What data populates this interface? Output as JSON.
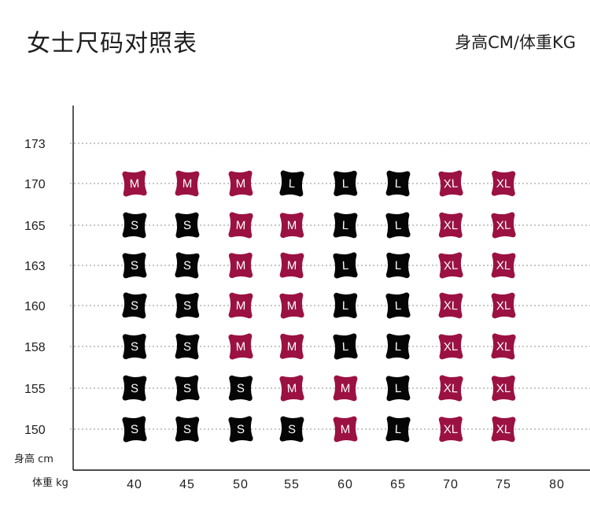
{
  "header": {
    "title": "女士尺码对照表",
    "subtitle": "身高CM/体重KG"
  },
  "colors": {
    "black": "#050505",
    "crimson": "#9b1242",
    "grid": "#8c8c8c",
    "axis": "#111111",
    "text": "#1e1e1e"
  },
  "chart_data": {
    "type": "table",
    "title": "女士尺码对照表",
    "unit_label": "身高CM/体重KG",
    "y_axis_label": "身高 cm",
    "x_axis_label": "体重 kg",
    "y_ticks": [
      "173",
      "170",
      "165",
      "163",
      "160",
      "158",
      "155",
      "150"
    ],
    "x_ticks": [
      "40",
      "45",
      "50",
      "55",
      "60",
      "65",
      "70",
      "75",
      "80"
    ],
    "rows": [
      {
        "height": "170",
        "sizes": [
          "M",
          "M",
          "M",
          "L",
          "L",
          "L",
          "XL",
          "XL"
        ]
      },
      {
        "height": "165",
        "sizes": [
          "S",
          "S",
          "M",
          "M",
          "L",
          "L",
          "XL",
          "XL"
        ]
      },
      {
        "height": "163",
        "sizes": [
          "S",
          "S",
          "M",
          "M",
          "L",
          "L",
          "XL",
          "XL"
        ]
      },
      {
        "height": "160",
        "sizes": [
          "S",
          "S",
          "M",
          "M",
          "L",
          "L",
          "XL",
          "XL"
        ]
      },
      {
        "height": "158",
        "sizes": [
          "S",
          "S",
          "M",
          "M",
          "L",
          "L",
          "XL",
          "XL"
        ]
      },
      {
        "height": "155",
        "sizes": [
          "S",
          "S",
          "S",
          "M",
          "M",
          "L",
          "XL",
          "XL"
        ]
      },
      {
        "height": "150",
        "sizes": [
          "S",
          "S",
          "S",
          "S",
          "M",
          "L",
          "XL",
          "XL"
        ]
      }
    ],
    "weight_columns": [
      "40",
      "45",
      "50",
      "55",
      "60",
      "65",
      "70",
      "75"
    ],
    "size_colors": {
      "S": "#050505",
      "M": "#9b1242",
      "L": "#050505",
      "XL": "#9b1242"
    },
    "grid": true,
    "grid_style": "dotted-horizontal"
  }
}
